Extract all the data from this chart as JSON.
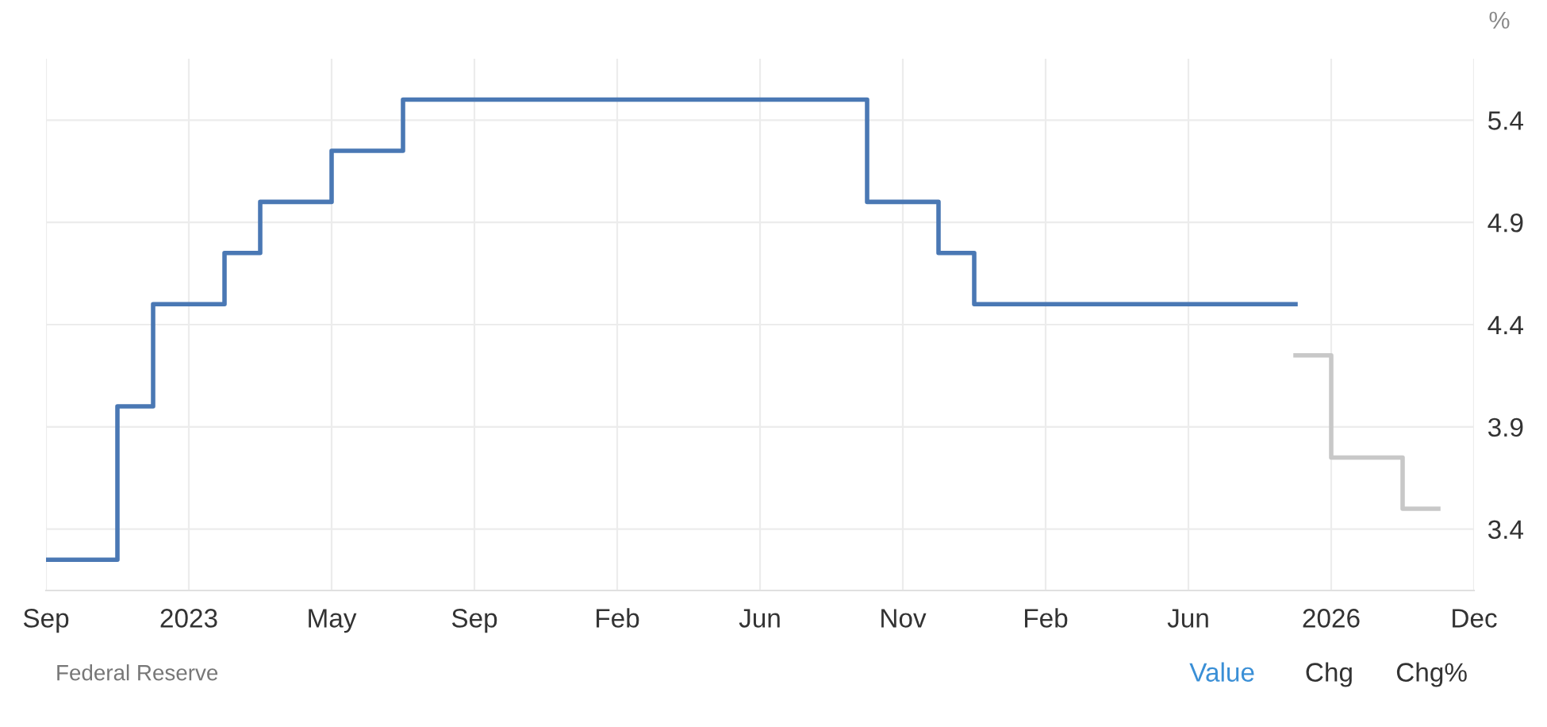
{
  "chart_data": {
    "type": "step",
    "ylabel": "%",
    "categories": [
      "Sep",
      null,
      null,
      null,
      "2023",
      null,
      null,
      null,
      "May",
      null,
      null,
      null,
      "Sep",
      null,
      null,
      null,
      "Feb",
      null,
      null,
      null,
      "Jun",
      null,
      null,
      null,
      "Nov",
      null,
      null,
      null,
      "Feb",
      null,
      null,
      null,
      "Jun",
      null,
      null,
      null,
      "2026",
      null,
      null,
      null,
      "Dec"
    ],
    "series": [
      {
        "color": "#4a78b4",
        "values": [
          3.25,
          3.25,
          4.0,
          4.5,
          4.5,
          4.75,
          5.0,
          5.0,
          5.25,
          5.25,
          5.5,
          5.5,
          5.5,
          5.5,
          5.5,
          5.5,
          5.5,
          5.5,
          5.5,
          5.5,
          5.5,
          5.5,
          5.5,
          5.0,
          5.0,
          4.75,
          4.5,
          4.5,
          4.5,
          4.5,
          4.5,
          4.5,
          4.5,
          4.5,
          4.5,
          4.5,
          null,
          null,
          null,
          null,
          null
        ]
      },
      {
        "color": "#c8c8c8",
        "values": [
          null,
          null,
          null,
          null,
          null,
          null,
          null,
          null,
          null,
          null,
          null,
          null,
          null,
          null,
          null,
          null,
          null,
          null,
          null,
          null,
          null,
          null,
          null,
          null,
          null,
          null,
          null,
          null,
          null,
          null,
          null,
          null,
          null,
          null,
          null,
          4.25,
          3.75,
          3.75,
          3.5,
          3.5,
          null
        ]
      }
    ],
    "ylim": [
      3.1,
      5.7
    ],
    "yticks": [
      3.4,
      3.9,
      4.4,
      4.9,
      5.4
    ],
    "grid": true,
    "legend": false,
    "annotations": [
      "Federal Reserve",
      "Value",
      "Chg",
      "Chg%"
    ]
  }
}
